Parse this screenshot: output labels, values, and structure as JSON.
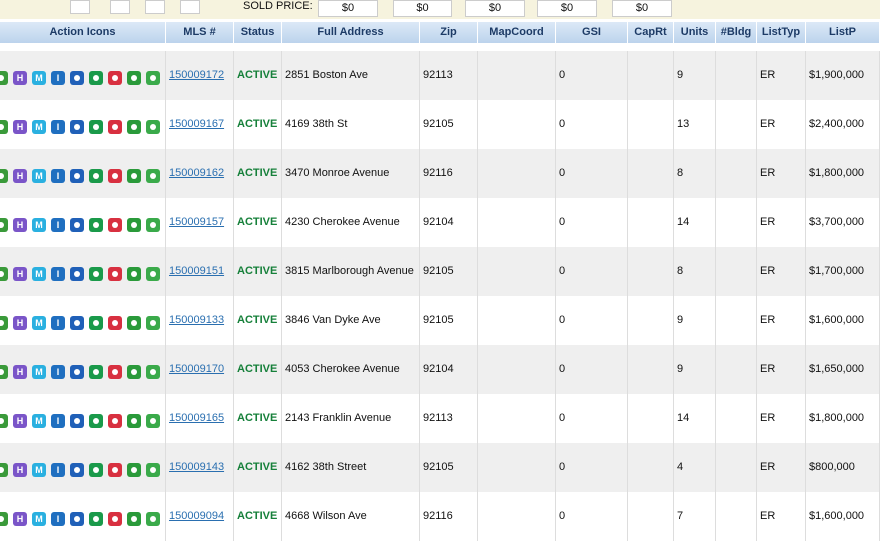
{
  "top_bar": {
    "label": "SOLD PRICE:",
    "prices": [
      "$0",
      "$0",
      "$0",
      "$0",
      "$0"
    ]
  },
  "table": {
    "columns": [
      "Action Icons",
      "MLS #",
      "Status",
      "Full Address",
      "Zip",
      "MapCoord",
      "GSI",
      "CapRt",
      "Units",
      "#Bldg",
      "ListTyp",
      "ListP"
    ],
    "icon_letters": [
      "H",
      "M",
      "I"
    ],
    "rows": [
      {
        "mls": "150009172",
        "status": "ACTIVE",
        "address": "2851 Boston Ave",
        "zip": "92113",
        "gsi": "0",
        "units": "9",
        "list_type": "ER",
        "list_price": "$1,900,000"
      },
      {
        "mls": "150009167",
        "status": "ACTIVE",
        "address": "4169 38th St",
        "zip": "92105",
        "gsi": "0",
        "units": "13",
        "list_type": "ER",
        "list_price": "$2,400,000"
      },
      {
        "mls": "150009162",
        "status": "ACTIVE",
        "address": "3470 Monroe Avenue",
        "zip": "92116",
        "gsi": "0",
        "units": "8",
        "list_type": "ER",
        "list_price": "$1,800,000"
      },
      {
        "mls": "150009157",
        "status": "ACTIVE",
        "address": "4230 Cherokee Avenue",
        "zip": "92104",
        "gsi": "0",
        "units": "14",
        "list_type": "ER",
        "list_price": "$3,700,000"
      },
      {
        "mls": "150009151",
        "status": "ACTIVE",
        "address": "3815 Marlborough Avenue",
        "zip": "92105",
        "gsi": "0",
        "units": "8",
        "list_type": "ER",
        "list_price": "$1,700,000"
      },
      {
        "mls": "150009133",
        "status": "ACTIVE",
        "address": "3846 Van Dyke Ave",
        "zip": "92105",
        "gsi": "0",
        "units": "9",
        "list_type": "ER",
        "list_price": "$1,600,000"
      },
      {
        "mls": "150009170",
        "status": "ACTIVE",
        "address": "4053 Cherokee Avenue",
        "zip": "92104",
        "gsi": "0",
        "units": "9",
        "list_type": "ER",
        "list_price": "$1,650,000"
      },
      {
        "mls": "150009165",
        "status": "ACTIVE",
        "address": "2143 Franklin Avenue",
        "zip": "92113",
        "gsi": "0",
        "units": "14",
        "list_type": "ER",
        "list_price": "$1,800,000"
      },
      {
        "mls": "150009143",
        "status": "ACTIVE",
        "address": "4162 38th Street",
        "zip": "92105",
        "gsi": "0",
        "units": "4",
        "list_type": "ER",
        "list_price": "$800,000"
      },
      {
        "mls": "150009094",
        "status": "ACTIVE",
        "address": "4668 Wilson Ave",
        "zip": "92116",
        "gsi": "0",
        "units": "7",
        "list_type": "ER",
        "list_price": "$1,600,000"
      }
    ]
  }
}
